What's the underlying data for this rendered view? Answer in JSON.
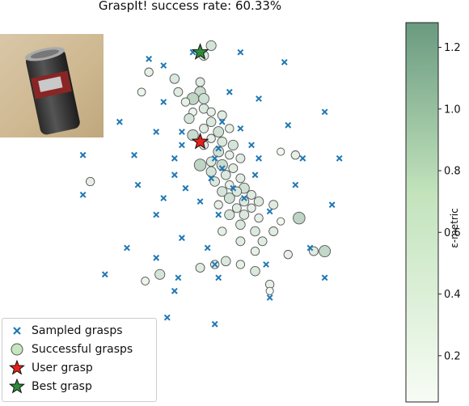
{
  "title": "GraspIt! success rate: 60.33%",
  "colors": {
    "sampled": "#1f77b4",
    "success_low": "#f7fcf5",
    "success_high": "#6a9a80",
    "user": "#e8201a",
    "best": "#2e8b3a"
  },
  "icons": {
    "sampled": "x-marker-icon",
    "success": "circle-marker-icon",
    "user": "red-star-icon",
    "best": "green-star-icon"
  },
  "legend": {
    "placement": "lower-left",
    "items": [
      {
        "label": "Sampled grasps",
        "marker": "x"
      },
      {
        "label": "Successful grasps",
        "marker": "circle"
      },
      {
        "label": "User grasp",
        "marker": "red-star"
      },
      {
        "label": "Best grasp",
        "marker": "green-star"
      }
    ]
  },
  "colorbar": {
    "label": "ε-metric",
    "min": 0.05,
    "max": 1.28,
    "ticks": [
      "0.2",
      "0.4",
      "0.6",
      "0.8",
      "1.0",
      "1.2"
    ],
    "tick_values": [
      0.2,
      0.4,
      0.6,
      0.8,
      1.0,
      1.2
    ]
  },
  "chart_data": {
    "type": "scatter",
    "title": "GraspIt! success rate: 60.33%",
    "axes_visible": false,
    "grid": false,
    "xlim": [
      0,
      1
    ],
    "ylim": [
      0,
      1
    ],
    "series": [
      {
        "name": "Sampled grasps",
        "marker": "x",
        "points": [
          [
            0.5,
            0.94
          ],
          [
            0.63,
            0.94
          ],
          [
            0.75,
            0.91
          ],
          [
            0.38,
            0.92
          ],
          [
            0.42,
            0.9
          ],
          [
            0.6,
            0.82
          ],
          [
            0.68,
            0.8
          ],
          [
            0.42,
            0.79
          ],
          [
            0.23,
            0.77
          ],
          [
            0.86,
            0.76
          ],
          [
            0.3,
            0.73
          ],
          [
            0.58,
            0.73
          ],
          [
            0.76,
            0.72
          ],
          [
            0.4,
            0.7
          ],
          [
            0.47,
            0.7
          ],
          [
            0.63,
            0.71
          ],
          [
            0.47,
            0.66
          ],
          [
            0.57,
            0.65
          ],
          [
            0.66,
            0.66
          ],
          [
            0.2,
            0.63
          ],
          [
            0.34,
            0.63
          ],
          [
            0.45,
            0.62
          ],
          [
            0.56,
            0.62
          ],
          [
            0.68,
            0.62
          ],
          [
            0.8,
            0.62
          ],
          [
            0.9,
            0.62
          ],
          [
            0.58,
            0.59
          ],
          [
            0.45,
            0.57
          ],
          [
            0.55,
            0.56
          ],
          [
            0.67,
            0.57
          ],
          [
            0.35,
            0.54
          ],
          [
            0.48,
            0.53
          ],
          [
            0.61,
            0.53
          ],
          [
            0.78,
            0.54
          ],
          [
            0.2,
            0.51
          ],
          [
            0.42,
            0.5
          ],
          [
            0.52,
            0.49
          ],
          [
            0.64,
            0.5
          ],
          [
            0.88,
            0.48
          ],
          [
            0.4,
            0.45
          ],
          [
            0.57,
            0.45
          ],
          [
            0.71,
            0.46
          ],
          [
            0.47,
            0.38
          ],
          [
            0.32,
            0.35
          ],
          [
            0.54,
            0.35
          ],
          [
            0.82,
            0.35
          ],
          [
            0.4,
            0.32
          ],
          [
            0.56,
            0.3
          ],
          [
            0.7,
            0.3
          ],
          [
            0.26,
            0.27
          ],
          [
            0.46,
            0.26
          ],
          [
            0.57,
            0.26
          ],
          [
            0.86,
            0.26
          ],
          [
            0.45,
            0.22
          ],
          [
            0.71,
            0.2
          ],
          [
            0.43,
            0.14
          ],
          [
            0.56,
            0.12
          ]
        ]
      },
      {
        "name": "Successful grasps",
        "marker": "circle",
        "points": [
          [
            0.55,
            0.96,
            0.35
          ],
          [
            0.53,
            0.93,
            0.3
          ],
          [
            0.38,
            0.88,
            0.2
          ],
          [
            0.45,
            0.86,
            0.3
          ],
          [
            0.52,
            0.85,
            0.25
          ],
          [
            0.36,
            0.82,
            0.15
          ],
          [
            0.46,
            0.82,
            0.25
          ],
          [
            0.52,
            0.82,
            0.45
          ],
          [
            0.5,
            0.8,
            0.55
          ],
          [
            0.53,
            0.8,
            0.4
          ],
          [
            0.48,
            0.79,
            0.2
          ],
          [
            0.53,
            0.77,
            0.3
          ],
          [
            0.55,
            0.76,
            0.2
          ],
          [
            0.5,
            0.76,
            0.15
          ],
          [
            0.58,
            0.75,
            0.25
          ],
          [
            0.49,
            0.74,
            0.35
          ],
          [
            0.55,
            0.73,
            0.3
          ],
          [
            0.6,
            0.71,
            0.2
          ],
          [
            0.53,
            0.71,
            0.25
          ],
          [
            0.57,
            0.7,
            0.4
          ],
          [
            0.5,
            0.69,
            0.45
          ],
          [
            0.55,
            0.68,
            0.2
          ],
          [
            0.58,
            0.67,
            0.3
          ],
          [
            0.61,
            0.66,
            0.35
          ],
          [
            0.53,
            0.66,
            0.25
          ],
          [
            0.57,
            0.64,
            0.4
          ],
          [
            0.6,
            0.63,
            0.2
          ],
          [
            0.63,
            0.62,
            0.25
          ],
          [
            0.55,
            0.61,
            0.3
          ],
          [
            0.52,
            0.6,
            0.55
          ],
          [
            0.58,
            0.6,
            0.45
          ],
          [
            0.61,
            0.59,
            0.25
          ],
          [
            0.74,
            0.64,
            0.1
          ],
          [
            0.78,
            0.63,
            0.2
          ],
          [
            0.55,
            0.58,
            0.35
          ],
          [
            0.59,
            0.57,
            0.3
          ],
          [
            0.63,
            0.56,
            0.25
          ],
          [
            0.56,
            0.55,
            0.3
          ],
          [
            0.6,
            0.54,
            0.2
          ],
          [
            0.64,
            0.53,
            0.4
          ],
          [
            0.58,
            0.52,
            0.35
          ],
          [
            0.62,
            0.52,
            0.3
          ],
          [
            0.66,
            0.51,
            0.25
          ],
          [
            0.6,
            0.5,
            0.4
          ],
          [
            0.64,
            0.49,
            0.3
          ],
          [
            0.68,
            0.49,
            0.3
          ],
          [
            0.57,
            0.48,
            0.2
          ],
          [
            0.62,
            0.47,
            0.25
          ],
          [
            0.66,
            0.47,
            0.2
          ],
          [
            0.72,
            0.48,
            0.25
          ],
          [
            0.6,
            0.45,
            0.35
          ],
          [
            0.64,
            0.45,
            0.3
          ],
          [
            0.68,
            0.44,
            0.2
          ],
          [
            0.74,
            0.43,
            0.1
          ],
          [
            0.79,
            0.44,
            0.55
          ],
          [
            0.63,
            0.42,
            0.3
          ],
          [
            0.67,
            0.4,
            0.3
          ],
          [
            0.72,
            0.4,
            0.25
          ],
          [
            0.58,
            0.4,
            0.2
          ],
          [
            0.63,
            0.37,
            0.25
          ],
          [
            0.69,
            0.37,
            0.25
          ],
          [
            0.76,
            0.33,
            0.2
          ],
          [
            0.67,
            0.34,
            0.2
          ],
          [
            0.63,
            0.3,
            0.2
          ],
          [
            0.67,
            0.28,
            0.3
          ],
          [
            0.71,
            0.24,
            0.2
          ],
          [
            0.71,
            0.22,
            0.1
          ],
          [
            0.83,
            0.34,
            0.25
          ],
          [
            0.86,
            0.34,
            0.5
          ],
          [
            0.22,
            0.55,
            0.2
          ],
          [
            0.37,
            0.25,
            0.15
          ],
          [
            0.41,
            0.27,
            0.35
          ],
          [
            0.52,
            0.29,
            0.25
          ],
          [
            0.56,
            0.3,
            0.2
          ],
          [
            0.59,
            0.31,
            0.3
          ]
        ]
      },
      {
        "name": "User grasp",
        "marker": "star",
        "points": [
          [
            0.52,
            0.67
          ]
        ]
      },
      {
        "name": "Best grasp",
        "marker": "star",
        "points": [
          [
            0.52,
            0.94
          ]
        ]
      }
    ]
  }
}
